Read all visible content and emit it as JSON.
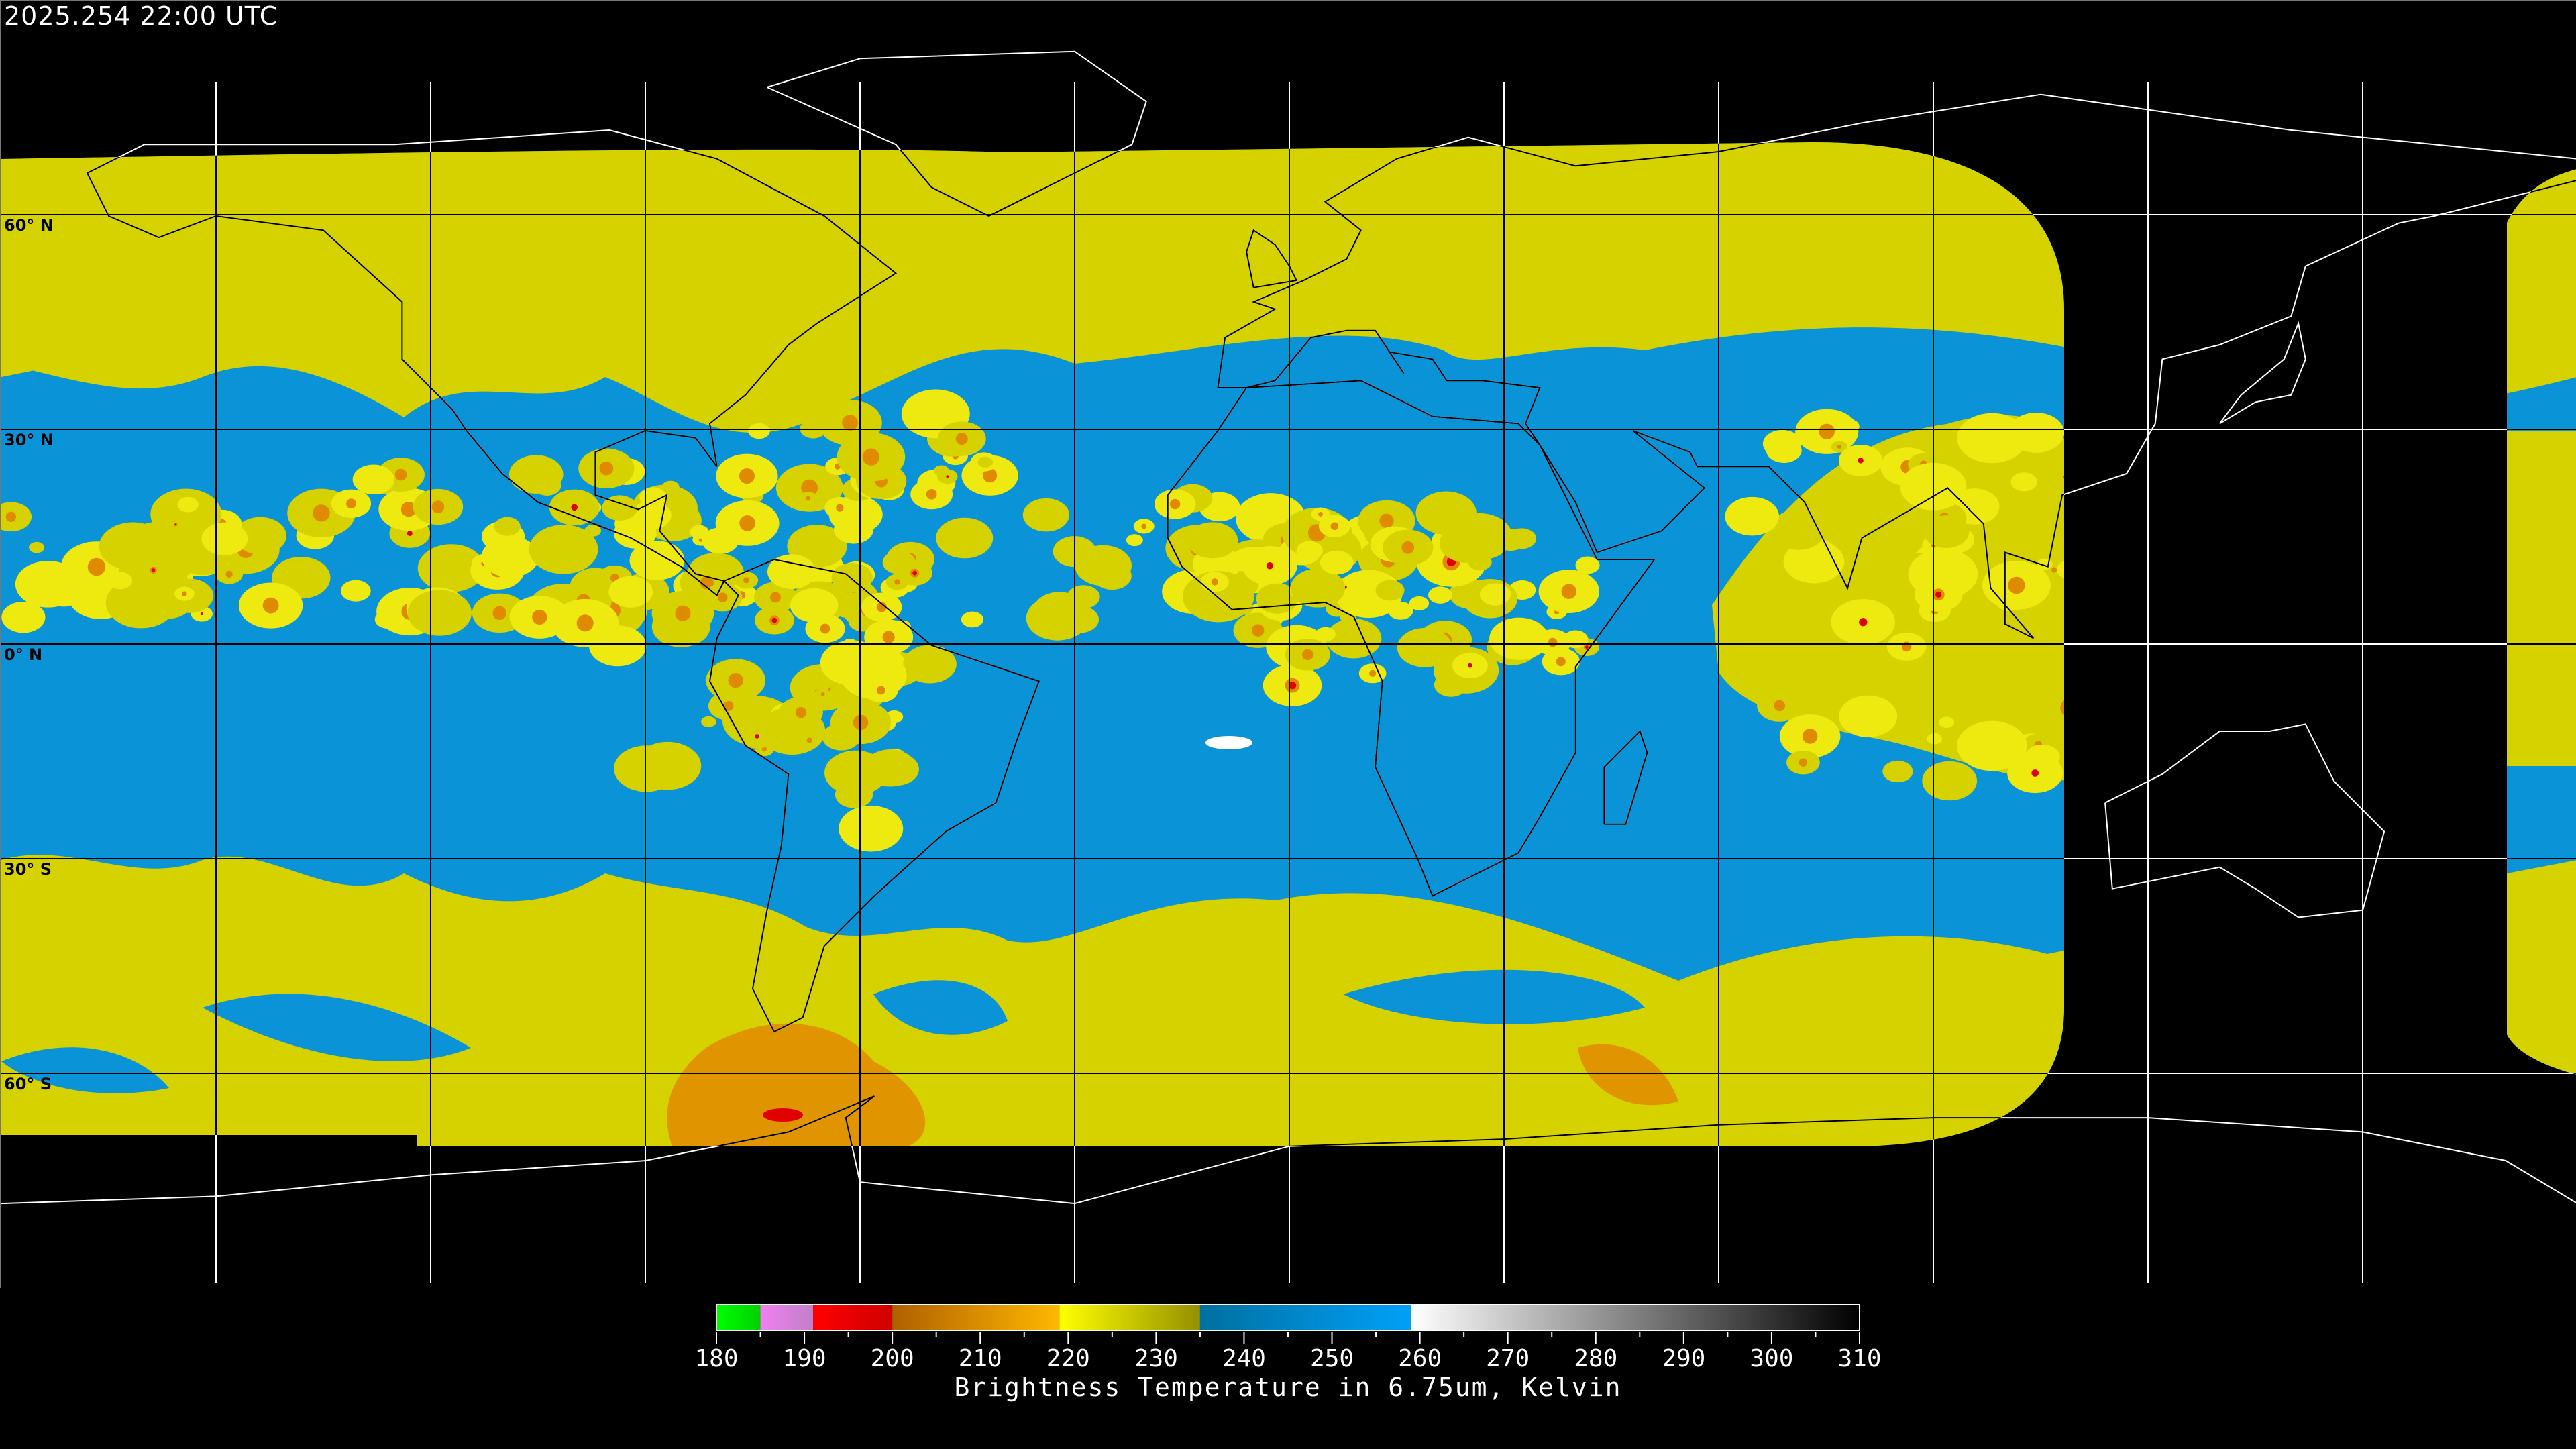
{
  "timestamp": "2025.254 22:00 UTC",
  "lat_labels": [
    "60° N",
    "30° N",
    "0° N",
    "30° S",
    "60° S"
  ],
  "colors": {
    "water_vapor_dry": "#0A93D6",
    "cloud_mid": "#D6D200",
    "cloud_bright": "#EEEA10",
    "cold_top": "#E08A00",
    "very_cold": "#E00000",
    "background": "#000000"
  },
  "colorbar": {
    "title": "Brightness Temperature in 6.75um, Kelvin",
    "min": 180,
    "max": 310,
    "tick_labels": [
      "180",
      "190",
      "200",
      "210",
      "220",
      "230",
      "240",
      "250",
      "260",
      "270",
      "280",
      "290",
      "300",
      "310"
    ],
    "segments": [
      {
        "from": 180,
        "to": 185,
        "start": "#00FF00",
        "end": "#00D000"
      },
      {
        "from": 185,
        "to": 191,
        "start": "#F080F0",
        "end": "#C080C8"
      },
      {
        "from": 191,
        "to": 200,
        "start": "#FF0000",
        "end": "#D00000"
      },
      {
        "from": 200,
        "to": 219,
        "start": "#B06000",
        "end": "#FFB800"
      },
      {
        "from": 219,
        "to": 235,
        "start": "#FFFF00",
        "end": "#949000"
      },
      {
        "from": 235,
        "to": 259,
        "start": "#0070A0",
        "end": "#00A0F8"
      },
      {
        "from": 259,
        "to": 310,
        "start": "#FFFFFF",
        "end": "#000000"
      }
    ]
  }
}
